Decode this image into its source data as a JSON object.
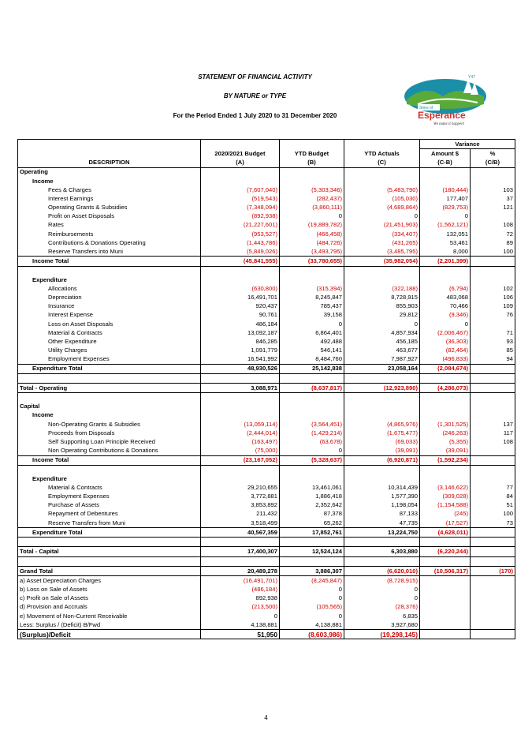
{
  "header": {
    "title": "STATEMENT OF FINANCIAL ACTIVITY",
    "subtitle": "BY NATURE or TYPE",
    "period": "For the Period Ended 1 July 2020 to 31 December 2020"
  },
  "logo": {
    "small_text": "Y47",
    "shire": "Shire of",
    "name": "Esperance",
    "tagline": "We make it happen!"
  },
  "columns": {
    "variance": "Variance",
    "description": "DESCRIPTION",
    "budget": "2020/2021 Budget",
    "budget_code": "(A)",
    "ytd_budget": "YTD Budget",
    "ytd_budget_code": "(B)",
    "ytd_actuals": "YTD Actuals",
    "ytd_actuals_code": "(C)",
    "amount": "Amount $",
    "amount_code": "(C-B)",
    "pct": "%",
    "pct_code": "(C/B)"
  },
  "rows": [
    {
      "type": "section",
      "label": "Operating"
    },
    {
      "type": "group",
      "label": "Income"
    },
    {
      "type": "item",
      "label": "Fees & Charges",
      "a": "(7,607,040)",
      "b": "(5,303,346)",
      "c": "(5,483,790)",
      "v": "(180,444)",
      "p": "103"
    },
    {
      "type": "item",
      "label": "Interest Earnings",
      "a": "(519,543)",
      "b": "(282,437)",
      "c": "(105,030)",
      "v": "177,407",
      "p": "37"
    },
    {
      "type": "item",
      "label": "Operating Grants & Subsidies",
      "a": "(7,348,094)",
      "b": "(3,860,111)",
      "c": "(4,689,864)",
      "v": "(829,753)",
      "p": "121"
    },
    {
      "type": "item",
      "label": "Profit on Asset Disposals",
      "a": "(892,938)",
      "b": "0",
      "c": "0",
      "v": "0",
      "p": ""
    },
    {
      "type": "item",
      "label": "Rates",
      "a": "(21,227,601)",
      "b": "(19,889,782)",
      "c": "(21,451,903)",
      "v": "(1,562,121)",
      "p": "108"
    },
    {
      "type": "item",
      "label": "Reimbursements",
      "a": "(953,527)",
      "b": "(466,458)",
      "c": "(334,407)",
      "v": "132,051",
      "p": "72"
    },
    {
      "type": "item",
      "label": "Contributions & Donations Operating",
      "a": "(1,443,786)",
      "b": "(484,726)",
      "c": "(431,265)",
      "v": "53,461",
      "p": "89"
    },
    {
      "type": "item",
      "label": "Reserve Transfers into Muni",
      "a": "(5,849,026)",
      "b": "(3,493,795)",
      "c": "(3,485,795)",
      "v": "8,000",
      "p": "100"
    },
    {
      "type": "total",
      "label": "Income Total",
      "a": "(45,841,555)",
      "b": "(33,780,655)",
      "c": "(35,982,054)",
      "v": "(2,201,399)",
      "p": ""
    },
    {
      "type": "spacer"
    },
    {
      "type": "group",
      "label": "Expenditure"
    },
    {
      "type": "item",
      "label": "Allocations",
      "a": "(630,800)",
      "b": "(315,394)",
      "c": "(322,188)",
      "v": "(6,794)",
      "p": "102"
    },
    {
      "type": "item",
      "label": "Depreciation",
      "a": "16,491,701",
      "b": "8,245,847",
      "c": "8,728,915",
      "v": "483,068",
      "p": "106"
    },
    {
      "type": "item",
      "label": "Insurance",
      "a": "920,437",
      "b": "785,437",
      "c": "855,903",
      "v": "70,466",
      "p": "109"
    },
    {
      "type": "item",
      "label": "Interest Expense",
      "a": "90,761",
      "b": "39,158",
      "c": "29,812",
      "v": "(9,346)",
      "p": "76"
    },
    {
      "type": "item",
      "label": "Loss on Asset Disposals",
      "a": "486,184",
      "b": "0",
      "c": "0",
      "v": "0",
      "p": ""
    },
    {
      "type": "item",
      "label": "Material & Contracts",
      "a": "13,092,187",
      "b": "6,864,401",
      "c": "4,857,934",
      "v": "(2,006,467)",
      "p": "71"
    },
    {
      "type": "item",
      "label": "Other Expenditure",
      "a": "846,285",
      "b": "492,488",
      "c": "456,185",
      "v": "(36,303)",
      "p": "93"
    },
    {
      "type": "item",
      "label": "Utility Charges",
      "a": "1,091,779",
      "b": "546,141",
      "c": "463,677",
      "v": "(82,464)",
      "p": "85"
    },
    {
      "type": "item",
      "label": "Employment Expenses",
      "a": "16,541,992",
      "b": "8,484,760",
      "c": "7,987,927",
      "v": "(496,833)",
      "p": "94"
    },
    {
      "type": "total",
      "label": "Expenditure Total",
      "a": "48,930,526",
      "b": "25,142,838",
      "c": "23,058,164",
      "v": "(2,084,674)",
      "p": ""
    },
    {
      "type": "spacer"
    },
    {
      "type": "grandsub",
      "label": "Total - Operating",
      "a": "3,088,971",
      "b": "(8,637,817)",
      "c": "(12,923,890)",
      "v": "(4,286,073)",
      "p": ""
    },
    {
      "type": "spacer"
    },
    {
      "type": "section",
      "label": "Capital"
    },
    {
      "type": "group",
      "label": "Income"
    },
    {
      "type": "item",
      "label": "Non-Operating Grants & Subsidies",
      "a": "(13,059,114)",
      "b": "(3,564,451)",
      "c": "(4,865,976)",
      "v": "(1,301,525)",
      "p": "137"
    },
    {
      "type": "item",
      "label": "Proceeds from Disposals",
      "a": "(2,444,014)",
      "b": "(1,429,214)",
      "c": "(1,675,477)",
      "v": "(246,263)",
      "p": "117"
    },
    {
      "type": "item",
      "label": "Self Supporting Loan Principle Received",
      "a": "(163,497)",
      "b": "(63,678)",
      "c": "(69,033)",
      "v": "(5,355)",
      "p": "108"
    },
    {
      "type": "item",
      "label": "Non Operating Contributions & Donations",
      "a": "(75,000)",
      "b": "0",
      "c": "(39,091)",
      "v": "(39,091)",
      "p": ""
    },
    {
      "type": "total",
      "label": "Income Total",
      "a": "(23,167,052)",
      "b": "(5,328,637)",
      "c": "(6,920,871)",
      "v": "(1,592,234)",
      "p": ""
    },
    {
      "type": "spacer"
    },
    {
      "type": "group",
      "label": "Expenditure"
    },
    {
      "type": "item",
      "label": "Material & Contracts",
      "a": "29,210,655",
      "b": "13,461,061",
      "c": "10,314,439",
      "v": "(3,146,622)",
      "p": "77"
    },
    {
      "type": "item",
      "label": "Employment Expenses",
      "a": "3,772,881",
      "b": "1,886,418",
      "c": "1,577,390",
      "v": "(309,028)",
      "p": "84"
    },
    {
      "type": "item",
      "label": "Purchase of Assets",
      "a": "3,853,892",
      "b": "2,352,642",
      "c": "1,198,054",
      "v": "(1,154,588)",
      "p": "51"
    },
    {
      "type": "item",
      "label": "Repayment of Debentures",
      "a": "211,432",
      "b": "87,378",
      "c": "87,133",
      "v": "(245)",
      "p": "100"
    },
    {
      "type": "item",
      "label": "Reserve Transfers from Muni",
      "a": "3,518,499",
      "b": "65,262",
      "c": "47,735",
      "v": "(17,527)",
      "p": "73"
    },
    {
      "type": "total",
      "label": "Expenditure Total",
      "a": "40,567,359",
      "b": "17,852,761",
      "c": "13,224,750",
      "v": "(4,628,011)",
      "p": ""
    },
    {
      "type": "spacer"
    },
    {
      "type": "grandsub",
      "label": "Total - Capital",
      "a": "17,400,307",
      "b": "12,524,124",
      "c": "6,303,880",
      "v": "(6,220,244)",
      "p": ""
    },
    {
      "type": "spacer"
    },
    {
      "type": "grand",
      "label": "Grand Total",
      "a": "20,489,278",
      "b": "3,886,307",
      "c": "(6,620,010)",
      "v": "(10,506,317)",
      "p": "(170)"
    },
    {
      "type": "adj",
      "label": "a) Asset Depreciation Charges",
      "a": "(16,491,701)",
      "b": "(8,245,847)",
      "c": "(8,728,915)",
      "v": "",
      "p": ""
    },
    {
      "type": "adj",
      "label": "b) Loss on Sale of Assets",
      "a": "(486,184)",
      "b": "0",
      "c": "0",
      "v": "",
      "p": ""
    },
    {
      "type": "adj",
      "label": "c) Profit on Sale of Assets",
      "a": "892,938",
      "b": "0",
      "c": "0",
      "v": "",
      "p": ""
    },
    {
      "type": "adj",
      "label": "d) Provision and Accruals",
      "a": "(213,500)",
      "b": "(105,565)",
      "c": "(28,376)",
      "v": "",
      "p": ""
    },
    {
      "type": "adj",
      "label": "e) Movement of Non-Current Receivable",
      "a": "0",
      "b": "0",
      "c": "6,835",
      "v": "",
      "p": ""
    },
    {
      "type": "adj",
      "label": "Less: Surplus / (Deficit) B/Fwd",
      "a": "4,138,881",
      "b": "4,138,881",
      "c": "3,927,680",
      "v": "",
      "p": ""
    },
    {
      "type": "final",
      "label": "(Surplus)/Deficit",
      "a": "51,950",
      "b": "(8,603,986)",
      "c": "(19,298,145)",
      "v": "",
      "p": ""
    }
  ],
  "footer": {
    "page_number": "4"
  },
  "colors": {
    "negative": "#d00000",
    "logo_teal": "#1b8fa8",
    "logo_green": "#5aaa3a",
    "logo_red": "#d0312d"
  }
}
